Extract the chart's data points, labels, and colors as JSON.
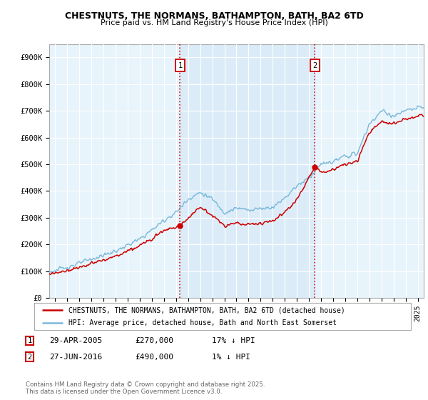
{
  "title": "CHESTNUTS, THE NORMANS, BATHAMPTON, BATH, BA2 6TD",
  "subtitle": "Price paid vs. HM Land Registry's House Price Index (HPI)",
  "ylim": [
    0,
    950000
  ],
  "xlim_start": 1994.5,
  "xlim_end": 2025.5,
  "yticks": [
    0,
    100000,
    200000,
    300000,
    400000,
    500000,
    600000,
    700000,
    800000,
    900000
  ],
  "ytick_labels": [
    "£0",
    "£100K",
    "£200K",
    "£300K",
    "£400K",
    "£500K",
    "£600K",
    "£700K",
    "£800K",
    "£900K"
  ],
  "xticks": [
    1995,
    1996,
    1997,
    1998,
    1999,
    2000,
    2001,
    2002,
    2003,
    2004,
    2005,
    2006,
    2007,
    2008,
    2009,
    2010,
    2011,
    2012,
    2013,
    2014,
    2015,
    2016,
    2017,
    2018,
    2019,
    2020,
    2021,
    2022,
    2023,
    2024,
    2025
  ],
  "hpi_color": "#7ab8d9",
  "price_color": "#cc0000",
  "marker_color": "#cc0000",
  "vline_color": "#cc0000",
  "shade_color": "#d6eaf8",
  "sale1_year": 2005.33,
  "sale1_price": 270000,
  "sale1_label": "1",
  "sale2_year": 2016.49,
  "sale2_price": 490000,
  "sale2_label": "2",
  "legend_entry1": "CHESTNUTS, THE NORMANS, BATHAMPTON, BATH, BA2 6TD (detached house)",
  "legend_entry2": "HPI: Average price, detached house, Bath and North East Somerset",
  "note1_date": "29-APR-2005",
  "note1_price": "£270,000",
  "note1_hpi": "17% ↓ HPI",
  "note2_date": "27-JUN-2016",
  "note2_price": "£490,000",
  "note2_hpi": "1% ↓ HPI",
  "footer": "Contains HM Land Registry data © Crown copyright and database right 2025.\nThis data is licensed under the Open Government Licence v3.0.",
  "bg_color": "#ffffff",
  "plot_bg_color": "#e8f4fb"
}
